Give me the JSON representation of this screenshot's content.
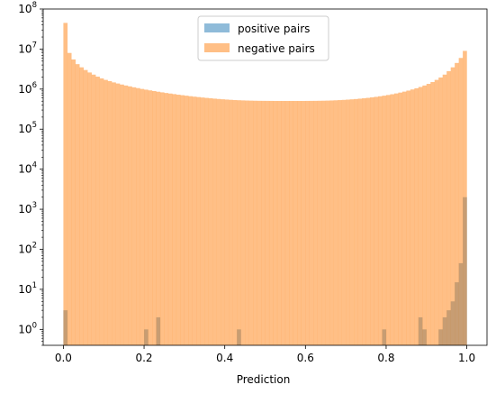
{
  "chart_data": {
    "type": "bar",
    "xlabel": "Prediction",
    "ylabel": "",
    "xlim": [
      -0.05,
      1.05
    ],
    "ylim": [
      0.4,
      100000000
    ],
    "yscale": "log",
    "grid": false,
    "legend_position": "top-center",
    "x_ticks": [
      "0.0",
      "0.2",
      "0.4",
      "0.6",
      "0.8",
      "1.0"
    ],
    "y_ticks": [
      {
        "base": "10",
        "exp": "0"
      },
      {
        "base": "10",
        "exp": "1"
      },
      {
        "base": "10",
        "exp": "2"
      },
      {
        "base": "10",
        "exp": "3"
      },
      {
        "base": "10",
        "exp": "4"
      },
      {
        "base": "10",
        "exp": "5"
      },
      {
        "base": "10",
        "exp": "6"
      },
      {
        "base": "10",
        "exp": "7"
      },
      {
        "base": "10",
        "exp": "8"
      }
    ],
    "bins": 100,
    "bin_start": 0.0,
    "bin_width": 0.01,
    "series": [
      {
        "name": "positive pairs",
        "color": "#1f77b4",
        "opacity": 0.5,
        "counts": [
          3,
          0,
          0,
          0,
          0,
          0,
          0,
          0,
          0,
          0,
          0,
          0,
          0,
          0,
          0,
          0,
          0,
          0,
          0,
          0,
          1,
          0,
          0,
          2,
          0,
          0,
          0,
          0,
          0,
          0,
          0,
          0,
          0,
          0,
          0,
          0,
          0,
          0,
          0,
          0,
          0,
          0,
          0,
          1,
          0,
          0,
          0,
          0,
          0,
          0,
          0,
          0,
          0,
          0,
          0,
          0,
          0,
          0,
          0,
          0,
          0,
          0,
          0,
          0,
          0,
          0,
          0,
          0,
          0,
          0,
          0,
          0,
          0,
          0,
          0,
          0,
          0,
          0,
          0,
          1,
          0,
          0,
          0,
          0,
          0,
          0,
          0,
          0,
          2,
          1,
          0,
          0,
          0,
          1,
          2,
          3,
          5,
          15,
          45,
          2000
        ]
      },
      {
        "name": "negative pairs",
        "color": "#ff7f0e",
        "opacity": 0.5,
        "counts": [
          45000000,
          8000000,
          5500000,
          4200000,
          3500000,
          3000000,
          2600000,
          2300000,
          2050000,
          1850000,
          1700000,
          1580000,
          1470000,
          1380000,
          1300000,
          1230000,
          1170000,
          1110000,
          1060000,
          1010000,
          970000,
          930000,
          895000,
          860000,
          830000,
          800000,
          775000,
          750000,
          725000,
          705000,
          685000,
          665000,
          648000,
          632000,
          617000,
          603000,
          590000,
          578000,
          567000,
          557000,
          548000,
          540000,
          533000,
          527000,
          522000,
          518000,
          515000,
          512000,
          510000,
          509000,
          508000,
          507000,
          506000,
          506000,
          506000,
          506000,
          506000,
          506000,
          506000,
          506000,
          507000,
          508000,
          509000,
          511000,
          513000,
          516000,
          520000,
          525000,
          531000,
          538000,
          546000,
          555000,
          565000,
          577000,
          590000,
          605000,
          622000,
          641000,
          662000,
          686000,
          713000,
          744000,
          779000,
          819000,
          865000,
          918000,
          980000,
          1050000,
          1130000,
          1230000,
          1350000,
          1500000,
          1700000,
          1950000,
          2300000,
          2800000,
          3500000,
          4500000,
          6000000,
          9000000
        ]
      }
    ]
  }
}
